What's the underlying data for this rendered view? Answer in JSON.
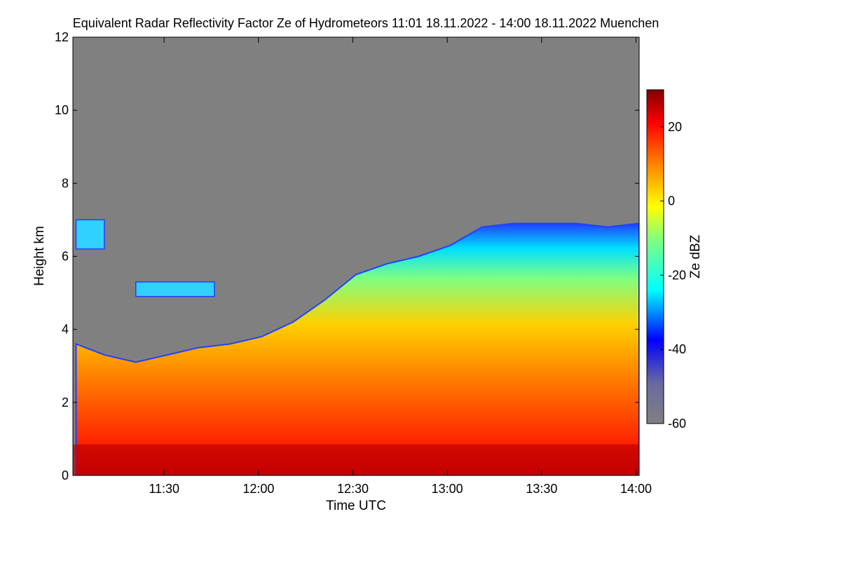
{
  "chart_data": {
    "type": "heatmap",
    "title": "Equivalent Radar Reflectivity Factor Ze of Hydrometeors   11:01 18.11.2022 - 14:00 18.11.2022 Muenchen",
    "xlabel": "Time UTC",
    "ylabel": "Height km",
    "x_range": [
      "11:01",
      "14:00"
    ],
    "xticks": [
      "11:30",
      "12:00",
      "12:30",
      "13:00",
      "13:30",
      "14:00"
    ],
    "xtick_minutes": [
      89,
      119,
      149,
      179,
      209,
      239
    ],
    "x_minutes_range": [
      60,
      240
    ],
    "ylim": [
      0,
      12
    ],
    "yticks": [
      0,
      2,
      4,
      6,
      8,
      10,
      12
    ],
    "background_color": "#808080",
    "colorbar": {
      "label": "Ze dBZ",
      "range": [
        -60,
        30
      ],
      "ticks": [
        20,
        0,
        -20,
        -40,
        -60
      ],
      "colors": [
        "#808080",
        "#0000ff",
        "#00ffff",
        "#ffff00",
        "#ff8000",
        "#ff0000",
        "#800000"
      ]
    },
    "cloud_top_profile": {
      "description": "approximate echo top height (km) vs time",
      "time": [
        "11:01",
        "11:10",
        "11:20",
        "11:30",
        "11:40",
        "11:50",
        "12:00",
        "12:10",
        "12:20",
        "12:30",
        "12:40",
        "12:50",
        "13:00",
        "13:10",
        "13:20",
        "13:30",
        "13:40",
        "13:50",
        "14:00"
      ],
      "top_km": [
        3.6,
        3.3,
        3.1,
        3.3,
        3.5,
        3.6,
        3.8,
        4.2,
        4.8,
        5.5,
        5.8,
        6.0,
        6.3,
        6.8,
        6.9,
        6.9,
        6.9,
        6.8,
        6.9
      ]
    },
    "upper_layers": [
      {
        "start": "11:01",
        "end": "11:10",
        "bottom_km": 6.2,
        "top_km": 7.0
      },
      {
        "start": "11:20",
        "end": "11:45",
        "bottom_km": 4.9,
        "top_km": 5.3
      }
    ],
    "bright_band_km": 0.7
  }
}
